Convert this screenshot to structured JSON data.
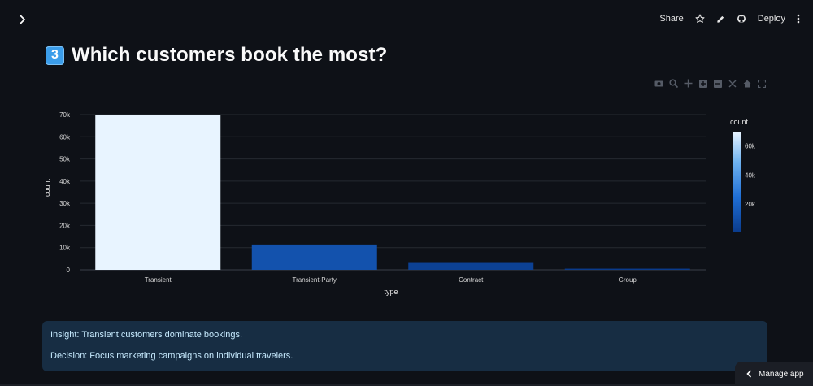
{
  "header": {
    "share_label": "Share",
    "deploy_label": "Deploy"
  },
  "heading": {
    "badge": "3",
    "title": "Which customers book the most?"
  },
  "chart_data": {
    "type": "bar",
    "categories": [
      "Transient",
      "Transient-Party",
      "Contract",
      "Group"
    ],
    "values": [
      69800,
      11400,
      3100,
      530
    ],
    "xlabel": "type",
    "ylabel": "count",
    "ylim": [
      0,
      70000
    ],
    "yticks": [
      "0",
      "10k",
      "20k",
      "30k",
      "40k",
      "50k",
      "60k",
      "70k"
    ],
    "grid": true,
    "colorbar": {
      "title": "count",
      "ticks": [
        "20k",
        "40k",
        "60k"
      ],
      "range": [
        530,
        69800
      ],
      "colors": [
        "#0a3b8c",
        "#1f6fd6",
        "#6fb3f0",
        "#e8f4ff"
      ]
    }
  },
  "insight": {
    "line1": "Insight: Transient customers dominate bookings.",
    "line2": "Decision: Focus marketing campaigns on individual travelers."
  },
  "footer": {
    "manage_label": "Manage app"
  }
}
